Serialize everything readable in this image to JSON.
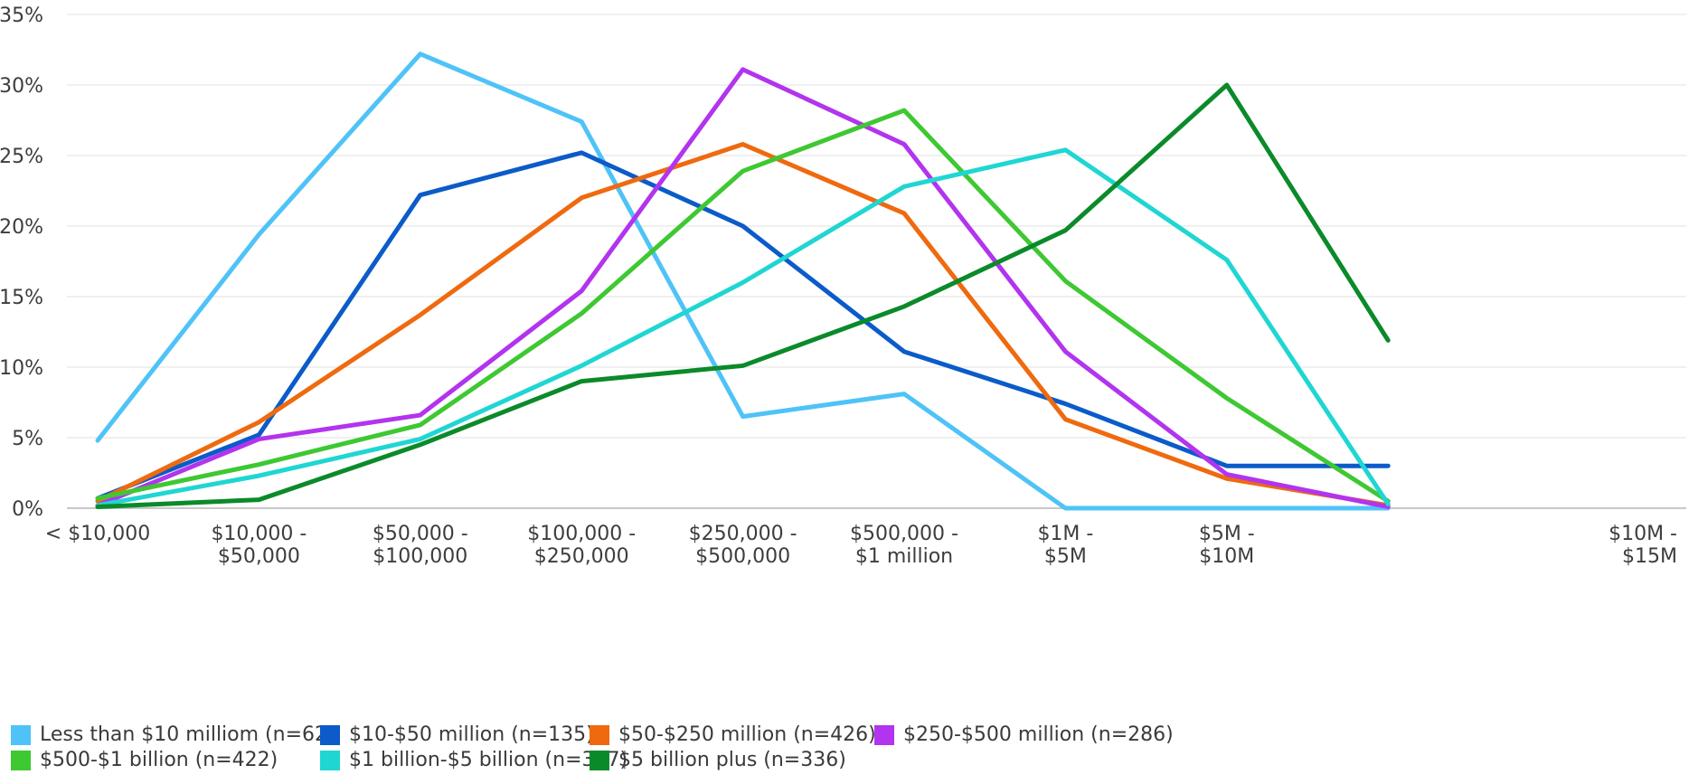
{
  "chart_data": {
    "type": "line",
    "categories": [
      "< $10,000",
      "$10,000 - $50,000",
      "$50,000 - $100,000",
      "$100,000 - $250,000",
      "$250,000 - $500,000",
      "$500,000 - $1 million",
      "$1M - $5M",
      "$5M - $10M",
      "$10M - $15M"
    ],
    "category_lines": [
      [
        "< $10,000"
      ],
      [
        "$10,000 -",
        "$50,000"
      ],
      [
        "$50,000 -",
        "$100,000"
      ],
      [
        "$100,000 -",
        "$250,000"
      ],
      [
        "$250,000 -",
        "$500,000"
      ],
      [
        "$500,000 -",
        "$1 million"
      ],
      [
        "$1M -",
        "$5M"
      ],
      [
        "$5M -",
        "$10M"
      ],
      [
        "$10M -",
        "$15M"
      ]
    ],
    "y_ticks": [
      "0%",
      "5%",
      "10%",
      "15%",
      "20%",
      "25%",
      "30%",
      "35%"
    ],
    "ylim": [
      0,
      35
    ],
    "grid": true,
    "legend_position": "bottom",
    "series": [
      {
        "name": "Less than $10 milliom (n=62)",
        "color": "#4fc3f7",
        "values": [
          4.8,
          19.4,
          32.2,
          27.4,
          6.5,
          8.1,
          0,
          0,
          0
        ]
      },
      {
        "name": "$10-$50 million (n=135)",
        "color": "#0b5bc9",
        "values": [
          0.7,
          5.2,
          22.2,
          25.2,
          20.0,
          11.1,
          7.4,
          3.0,
          3.0
        ]
      },
      {
        "name": "$50-$250 million (n=426)",
        "color": "#ef6a0f",
        "values": [
          0.5,
          6.1,
          13.7,
          22.0,
          25.8,
          20.9,
          6.3,
          2.1,
          0.2
        ]
      },
      {
        "name": "$250-$500 million (n=286)",
        "color": "#b234ee",
        "values": [
          0.2,
          4.9,
          6.6,
          15.4,
          31.1,
          25.8,
          11.1,
          2.4,
          0.1
        ]
      },
      {
        "name": "$500-$1 billion (n=422)",
        "color": "#3ec832",
        "values": [
          0.7,
          3.1,
          5.9,
          13.8,
          23.9,
          28.2,
          16.1,
          7.8,
          0.5
        ]
      },
      {
        "name": "$1 billion-$5 billion (n=307)",
        "color": "#1fd6d2",
        "values": [
          0.2,
          2.3,
          4.9,
          10.1,
          16.0,
          22.8,
          25.4,
          17.6,
          0.3
        ]
      },
      {
        "name": "$5 billion plus (n=336)",
        "color": "#0b8a2a",
        "values": [
          0.1,
          0.6,
          4.5,
          9.0,
          10.1,
          14.3,
          19.7,
          30.0,
          11.9
        ]
      }
    ]
  }
}
